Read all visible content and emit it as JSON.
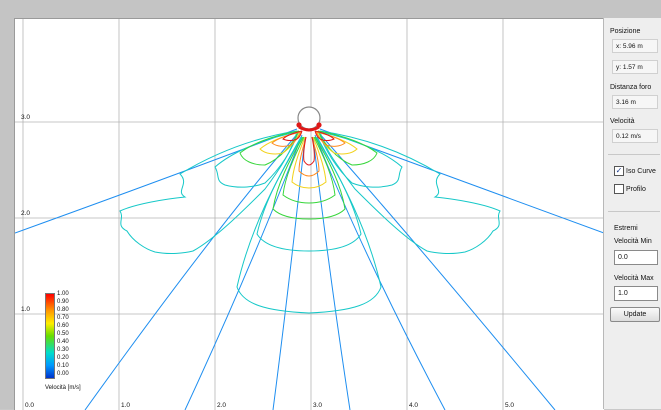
{
  "axes": {
    "x_ticks": [
      "0.0",
      "1.0",
      "2.0",
      "3.0",
      "4.0",
      "5.0"
    ],
    "y_ticks": [
      "3.0",
      "2.0",
      "1.0"
    ]
  },
  "legend": {
    "title": "Velocità [m/s]",
    "values": [
      "1.00",
      "0.90",
      "0.80",
      "0.70",
      "0.60",
      "0.50",
      "0.40",
      "0.30",
      "0.20",
      "0.10",
      "0.00"
    ]
  },
  "panel": {
    "position_label": "Posizione",
    "x_value": "x: 5.96 m",
    "y_value": "y: 1.57 m",
    "distance_label": "Distanza foro",
    "distance_value": "3.16 m",
    "velocity_label": "Velocità",
    "velocity_value": "0.12 m/s",
    "iso_curve_label": "Iso Curve",
    "iso_curve_checked": true,
    "profile_label": "Profilo",
    "profile_checked": false,
    "extremes_label": "Estremi",
    "vmin_label": "Velocità Min",
    "vmin_value": "0.0",
    "vmax_label": "Velocità Max",
    "vmax_value": "1.0",
    "update_label": "Update"
  },
  "colors": {
    "grid": "#b5b5b5",
    "contour_cyan": "#16c8c8",
    "contour_blue": "#1e8ef0",
    "contour_green": "#36d63a",
    "contour_yellow": "#f2d21c",
    "contour_orange": "#ff8a1c",
    "contour_red": "#e01818"
  }
}
